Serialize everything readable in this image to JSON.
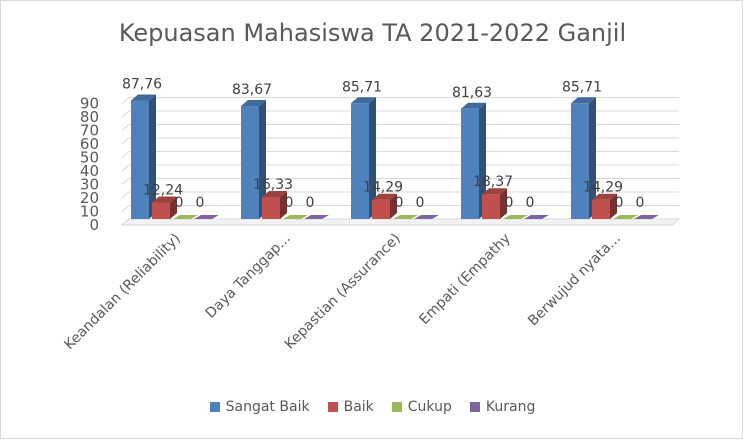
{
  "chart_data": {
    "type": "bar",
    "title": "Kepuasan Mahasiswa TA 2021-2022 Ganjil",
    "categories": [
      "Keandalan (Reliability)",
      "Daya Tanggap...",
      "Kepastian (Assurance)",
      "Empati (Empathy",
      "Berwujud nyata..."
    ],
    "yticks": [
      "0",
      "10",
      "20",
      "30",
      "40",
      "50",
      "60",
      "70",
      "80",
      "90"
    ],
    "ylim": [
      0,
      90
    ],
    "legend_position": "bottom",
    "series": [
      {
        "name": "Sangat Baik",
        "color": "#4f81bd",
        "values": [
          87.76,
          83.67,
          85.71,
          81.63,
          85.71
        ],
        "labels": [
          "87,76",
          "83,67",
          "85,71",
          "81,63",
          "85,71"
        ]
      },
      {
        "name": "Baik",
        "color": "#c0504d",
        "values": [
          12.24,
          16.33,
          14.29,
          18.37,
          14.29
        ],
        "labels": [
          "12,24",
          "16,33",
          "14,29",
          "18,37",
          "14,29"
        ]
      },
      {
        "name": "Cukup",
        "color": "#9bbb59",
        "values": [
          0,
          0,
          0,
          0,
          0
        ],
        "labels": [
          "0",
          "0",
          "0",
          "0",
          "0"
        ]
      },
      {
        "name": "Kurang",
        "color": "#8064a2",
        "values": [
          0,
          0,
          0,
          0,
          0
        ],
        "labels": [
          "0",
          "0",
          "0",
          "0",
          "0"
        ]
      }
    ]
  }
}
